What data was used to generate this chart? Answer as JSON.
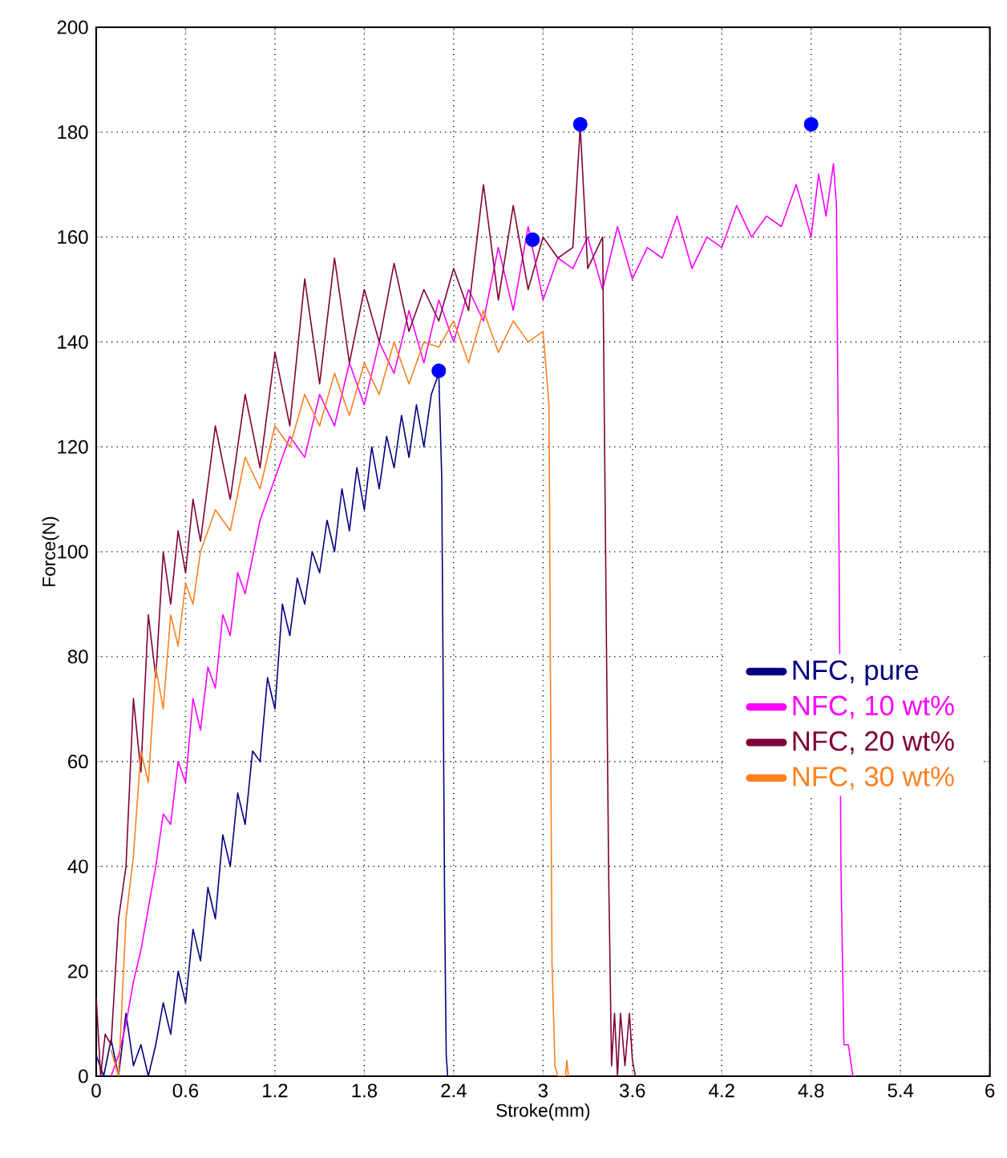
{
  "chart_data": {
    "type": "line",
    "xlabel": "Stroke(mm)",
    "ylabel": "Force(N)",
    "xlim": [
      0,
      6
    ],
    "ylim": [
      0,
      200
    ],
    "xticks": [
      0,
      0.6,
      1.2,
      1.8,
      2.4,
      3,
      3.6,
      4.2,
      4.8,
      5.4,
      6
    ],
    "yticks": [
      0,
      20,
      40,
      60,
      80,
      100,
      120,
      140,
      160,
      180,
      200
    ],
    "grid": true,
    "legend": "right",
    "line_style": "solid",
    "series": [
      {
        "name": "NFC, pure",
        "color": "#000080",
        "x": [
          0,
          0.05,
          0.1,
          0.15,
          0.2,
          0.25,
          0.3,
          0.35,
          0.4,
          0.45,
          0.5,
          0.55,
          0.6,
          0.65,
          0.7,
          0.75,
          0.8,
          0.85,
          0.9,
          0.95,
          1.0,
          1.05,
          1.1,
          1.15,
          1.2,
          1.25,
          1.3,
          1.35,
          1.4,
          1.45,
          1.5,
          1.55,
          1.6,
          1.65,
          1.7,
          1.75,
          1.8,
          1.85,
          1.9,
          1.95,
          2.0,
          2.05,
          2.1,
          2.15,
          2.2,
          2.25,
          2.3,
          2.32,
          2.34,
          2.35,
          2.36,
          2.38
        ],
        "values": [
          4,
          0,
          7,
          0,
          12,
          2,
          6,
          0,
          6,
          14,
          8,
          20,
          14,
          28,
          22,
          36,
          30,
          46,
          40,
          54,
          48,
          62,
          60,
          76,
          70,
          90,
          84,
          95,
          90,
          100,
          96,
          106,
          100,
          112,
          104,
          116,
          108,
          120,
          112,
          122,
          116,
          126,
          118,
          128,
          120,
          130,
          134,
          114,
          30,
          4,
          0,
          0
        ]
      },
      {
        "name": "NFC, 10 wt%",
        "color": "#ff00ff",
        "x": [
          0.1,
          0.15,
          0.2,
          0.25,
          0.3,
          0.35,
          0.4,
          0.45,
          0.5,
          0.55,
          0.6,
          0.65,
          0.7,
          0.75,
          0.8,
          0.85,
          0.9,
          0.95,
          1.0,
          1.1,
          1.2,
          1.3,
          1.4,
          1.5,
          1.6,
          1.7,
          1.8,
          1.9,
          2.0,
          2.1,
          2.2,
          2.3,
          2.4,
          2.5,
          2.6,
          2.7,
          2.8,
          2.9,
          3.0,
          3.1,
          3.2,
          3.3,
          3.4,
          3.5,
          3.6,
          3.7,
          3.8,
          3.9,
          4.0,
          4.1,
          4.2,
          4.3,
          4.4,
          4.5,
          4.6,
          4.7,
          4.8,
          4.85,
          4.9,
          4.95,
          4.97,
          4.99,
          5.0,
          5.02,
          5.05,
          5.08,
          5.1
        ],
        "values": [
          0,
          4,
          10,
          18,
          24,
          32,
          40,
          50,
          48,
          60,
          56,
          72,
          66,
          78,
          74,
          88,
          84,
          96,
          92,
          106,
          114,
          122,
          118,
          130,
          124,
          136,
          128,
          140,
          134,
          146,
          136,
          148,
          140,
          150,
          144,
          158,
          146,
          162,
          148,
          156,
          154,
          160,
          150,
          162,
          152,
          158,
          156,
          164,
          154,
          160,
          158,
          166,
          160,
          164,
          162,
          170,
          160,
          172,
          164,
          174,
          166,
          90,
          40,
          6,
          6,
          0,
          0
        ]
      },
      {
        "name": "NFC, 20 wt%",
        "color": "#7f0038",
        "x": [
          0,
          0.03,
          0.06,
          0.1,
          0.15,
          0.2,
          0.25,
          0.3,
          0.35,
          0.4,
          0.45,
          0.5,
          0.55,
          0.6,
          0.65,
          0.7,
          0.8,
          0.9,
          1.0,
          1.1,
          1.2,
          1.3,
          1.4,
          1.5,
          1.6,
          1.7,
          1.8,
          1.9,
          2.0,
          2.1,
          2.2,
          2.3,
          2.4,
          2.5,
          2.6,
          2.7,
          2.8,
          2.9,
          3.0,
          3.1,
          3.2,
          3.25,
          3.3,
          3.4,
          3.44,
          3.46,
          3.48,
          3.5,
          3.52,
          3.55,
          3.58,
          3.6,
          3.62
        ],
        "values": [
          15,
          0,
          8,
          6,
          30,
          40,
          72,
          58,
          88,
          76,
          100,
          90,
          104,
          96,
          110,
          102,
          124,
          110,
          130,
          116,
          138,
          124,
          152,
          132,
          156,
          136,
          150,
          140,
          155,
          142,
          150,
          144,
          154,
          146,
          170,
          148,
          166,
          150,
          160,
          156,
          158,
          181,
          154,
          160,
          40,
          2,
          12,
          0,
          12,
          2,
          12,
          3,
          0
        ]
      },
      {
        "name": "NFC, 30 wt%",
        "color": "#ff8020",
        "x": [
          0.1,
          0.15,
          0.2,
          0.25,
          0.3,
          0.35,
          0.4,
          0.45,
          0.5,
          0.55,
          0.6,
          0.65,
          0.7,
          0.8,
          0.9,
          1.0,
          1.1,
          1.2,
          1.3,
          1.4,
          1.5,
          1.6,
          1.7,
          1.8,
          1.9,
          2.0,
          2.1,
          2.2,
          2.3,
          2.4,
          2.5,
          2.6,
          2.7,
          2.8,
          2.9,
          3.0,
          3.04,
          3.06,
          3.08,
          3.1,
          3.15,
          3.16,
          3.17
        ],
        "values": [
          5,
          0,
          30,
          42,
          62,
          56,
          78,
          70,
          88,
          82,
          94,
          90,
          100,
          108,
          104,
          118,
          112,
          124,
          120,
          130,
          124,
          134,
          126,
          136,
          130,
          140,
          132,
          140,
          139,
          144,
          136,
          146,
          138,
          144,
          140,
          142,
          128,
          22,
          2,
          0,
          0,
          3,
          0
        ]
      },
      {
        "type": "scatter",
        "color": "#0000ff",
        "x": [
          2.3,
          2.93,
          3.25,
          4.8
        ],
        "values": [
          134.5,
          159.5,
          181.5,
          181.5
        ]
      }
    ]
  }
}
